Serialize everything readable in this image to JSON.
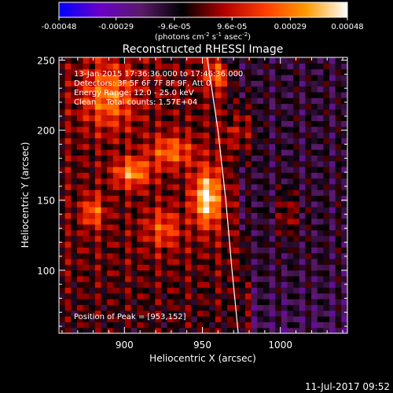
{
  "chart_data": {
    "type": "heatmap",
    "title": "Reconstructed RHESSI Image",
    "xlabel": "Heliocentric X (arcsec)",
    "ylabel": "Heliocentric Y (arcsec)",
    "xlim": [
      858,
      1043
    ],
    "ylim": [
      55,
      252
    ],
    "x_ticks": [
      900,
      950,
      1000
    ],
    "y_ticks": [
      100,
      150,
      200,
      250
    ],
    "x_tick_labels": [
      "900",
      "950",
      "1000"
    ],
    "y_tick_labels": [
      "100",
      "150",
      "200",
      "250"
    ],
    "colorbar": {
      "range": [
        -0.00048,
        0.00048
      ],
      "ticks": [
        -0.00048,
        -0.00029,
        -9.6e-05,
        9.6e-05,
        0.00029,
        0.00048
      ],
      "tick_labels": [
        "-0.00048",
        "-0.00029",
        "-9.6e-05",
        "9.6e-05",
        "0.00029",
        "0.00048"
      ],
      "unit_main": "(photons cm",
      "unit_exp1": "-2",
      "unit_mid1": " s",
      "unit_exp2": "-1",
      "unit_mid2": " asec",
      "unit_exp3": "-2",
      "unit_end": ")"
    },
    "annotations": [
      "13-Jan-2015 17:36:36.000 to 17:46:36.000",
      "Detectors: 3F 5F 6F 7F 8F 9F, Att 0",
      "Energy Range: 12.0 - 25.0 keV",
      "Clean    Total counts: 1.57E+04"
    ],
    "peak_label": "Position of Peak = [953,152]",
    "peak": [
      953,
      152
    ],
    "sources": [
      {
        "x": 953,
        "y": 152,
        "amp": 1.0,
        "sx": 6,
        "sy": 14
      },
      {
        "x": 905,
        "y": 170,
        "amp": 0.7,
        "sx": 8,
        "sy": 7
      },
      {
        "x": 930,
        "y": 185,
        "amp": 0.55,
        "sx": 10,
        "sy": 8
      },
      {
        "x": 880,
        "y": 142,
        "amp": 0.55,
        "sx": 5,
        "sy": 8
      },
      {
        "x": 890,
        "y": 225,
        "amp": 0.6,
        "sx": 12,
        "sy": 16
      },
      {
        "x": 925,
        "y": 130,
        "amp": 0.45,
        "sx": 8,
        "sy": 10
      },
      {
        "x": 975,
        "y": 200,
        "amp": 0.4,
        "sx": 6,
        "sy": 14
      },
      {
        "x": 1005,
        "y": 140,
        "amp": 0.35,
        "sx": 5,
        "sy": 12
      },
      {
        "x": 960,
        "y": 240,
        "amp": 0.5,
        "sx": 6,
        "sy": 8
      }
    ],
    "limb": [
      [
        953,
        252
      ],
      [
        960,
        200
      ],
      [
        965,
        150
      ],
      [
        969,
        100
      ],
      [
        973,
        55
      ]
    ],
    "colors": {
      "limb": "#ffffff",
      "colormap": [
        "#0000ff",
        "#6a00c8",
        "#5a1a6a",
        "#000000",
        "#b00000",
        "#ff3c00",
        "#ff9a00",
        "#ffffff"
      ]
    }
  },
  "footer": {
    "date": "11-Jul-2017 09:52"
  }
}
